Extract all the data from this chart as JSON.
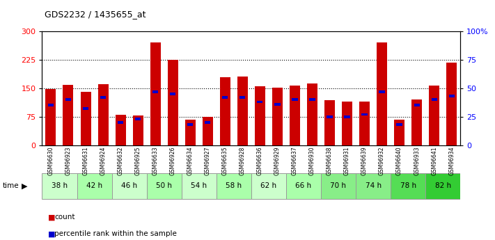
{
  "title": "GDS2232 / 1435655_at",
  "samples": [
    "GSM96630",
    "GSM96923",
    "GSM96631",
    "GSM96924",
    "GSM96632",
    "GSM96925",
    "GSM96633",
    "GSM96926",
    "GSM96634",
    "GSM96927",
    "GSM96635",
    "GSM96928",
    "GSM96636",
    "GSM96929",
    "GSM96637",
    "GSM96930",
    "GSM96638",
    "GSM96931",
    "GSM96639",
    "GSM96932",
    "GSM96640",
    "GSM96933",
    "GSM96641",
    "GSM96934"
  ],
  "time_groups": [
    {
      "label": "38 h",
      "indices": [
        0,
        1
      ],
      "color": "#ccffcc"
    },
    {
      "label": "42 h",
      "indices": [
        2,
        3
      ],
      "color": "#aaffaa"
    },
    {
      "label": "46 h",
      "indices": [
        4,
        5
      ],
      "color": "#ccffcc"
    },
    {
      "label": "50 h",
      "indices": [
        6,
        7
      ],
      "color": "#aaffaa"
    },
    {
      "label": "54 h",
      "indices": [
        8,
        9
      ],
      "color": "#ccffcc"
    },
    {
      "label": "58 h",
      "indices": [
        10,
        11
      ],
      "color": "#aaffaa"
    },
    {
      "label": "62 h",
      "indices": [
        12,
        13
      ],
      "color": "#ccffcc"
    },
    {
      "label": "66 h",
      "indices": [
        14,
        15
      ],
      "color": "#aaffaa"
    },
    {
      "label": "70 h",
      "indices": [
        16,
        17
      ],
      "color": "#88ee88"
    },
    {
      "label": "74 h",
      "indices": [
        18,
        19
      ],
      "color": "#88ee88"
    },
    {
      "label": "78 h",
      "indices": [
        20,
        21
      ],
      "color": "#55dd55"
    },
    {
      "label": "82 h",
      "indices": [
        22,
        23
      ],
      "color": "#33cc33"
    }
  ],
  "count_values": [
    148,
    158,
    140,
    160,
    80,
    78,
    270,
    225,
    68,
    75,
    178,
    180,
    155,
    152,
    157,
    162,
    118,
    115,
    115,
    270,
    68,
    120,
    157,
    218
  ],
  "percentile_values": [
    35,
    40,
    32,
    42,
    20,
    23,
    47,
    45,
    18,
    20,
    42,
    42,
    38,
    36,
    40,
    40,
    25,
    25,
    27,
    47,
    18,
    35,
    40,
    43
  ],
  "bar_color": "#cc0000",
  "marker_color": "#0000cc",
  "ylim_left": [
    0,
    300
  ],
  "ylim_right": [
    0,
    100
  ],
  "yticks_left": [
    0,
    75,
    150,
    225,
    300
  ],
  "yticks_right": [
    0,
    25,
    50,
    75,
    100
  ],
  "yticklabels_right": [
    "0",
    "25",
    "50",
    "75",
    "100%"
  ],
  "grid_values": [
    75,
    150,
    225
  ],
  "bg_white": "#ffffff",
  "bg_gray": "#e8e8e8"
}
